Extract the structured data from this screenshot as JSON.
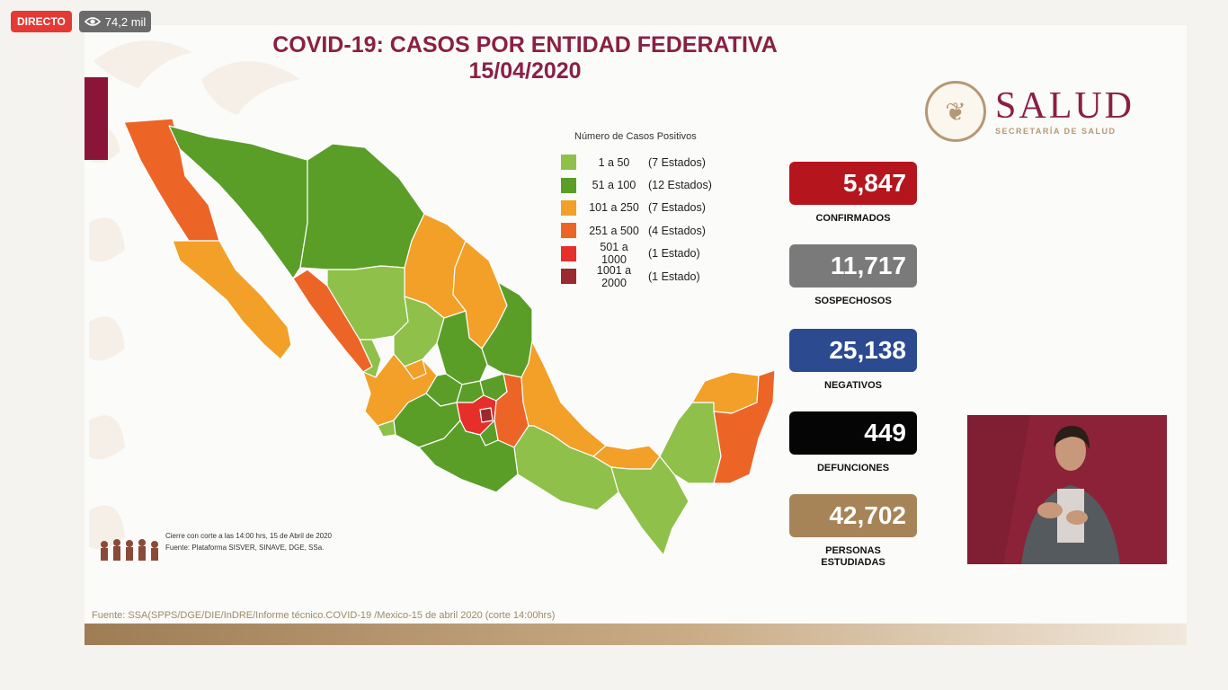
{
  "stream": {
    "live_label": "DIRECTO",
    "viewers": "74,2 mil",
    "viewers_icon": "eye-icon"
  },
  "slide": {
    "title_line1": "COVID-19: CASOS POR ENTIDAD FEDERATIVA",
    "title_line2": "15/04/2020",
    "logo": {
      "wordmark": "SALUD",
      "subtitle": "SECRETARÍA DE SALUD"
    },
    "legend": {
      "title": "Número de Casos Positivos",
      "items": [
        {
          "range": "1 a 50",
          "count": "(7 Estados)",
          "color": "#8fc04a"
        },
        {
          "range": "51 a 100",
          "count": "(12 Estados)",
          "color": "#5a9e28"
        },
        {
          "range": "101 a 250",
          "count": "(7 Estados)",
          "color": "#f2a028"
        },
        {
          "range": "251 a 500",
          "count": "(4 Estados)",
          "color": "#ec6527"
        },
        {
          "range": "501 a 1000",
          "count": "(1 Estado)",
          "color": "#e62f2a"
        },
        {
          "range": "1001 a 2000",
          "count": "(1 Estado)",
          "color": "#9b2a2e"
        }
      ]
    },
    "stats": [
      {
        "value": "5,847",
        "label": "CONFIRMADOS",
        "color": "#b5161e"
      },
      {
        "value": "11,717",
        "label": "SOSPECHOSOS",
        "color": "#7a7a7a"
      },
      {
        "value": "25,138",
        "label": "NEGATIVOS",
        "color": "#2b4a90"
      },
      {
        "value": "449",
        "label": "DEFUNCIONES",
        "color": "#050505"
      },
      {
        "value": "42,702",
        "label": "PERSONAS ESTUDIADAS",
        "color": "#a78457"
      }
    ],
    "footnote_line1": "Cierre con corte a las 14:00 hrs, 15 de Abril de 2020",
    "footnote_line2": "Fuente: Plataforma SISVER, SINAVE, DGE, SSa.",
    "source": "Fuente: SSA(SPPS/DGE/DIE/InDRE/Informe técnico.COVID-19 /Mexico-15 de abril 2020 (corte 14:00hrs)"
  }
}
